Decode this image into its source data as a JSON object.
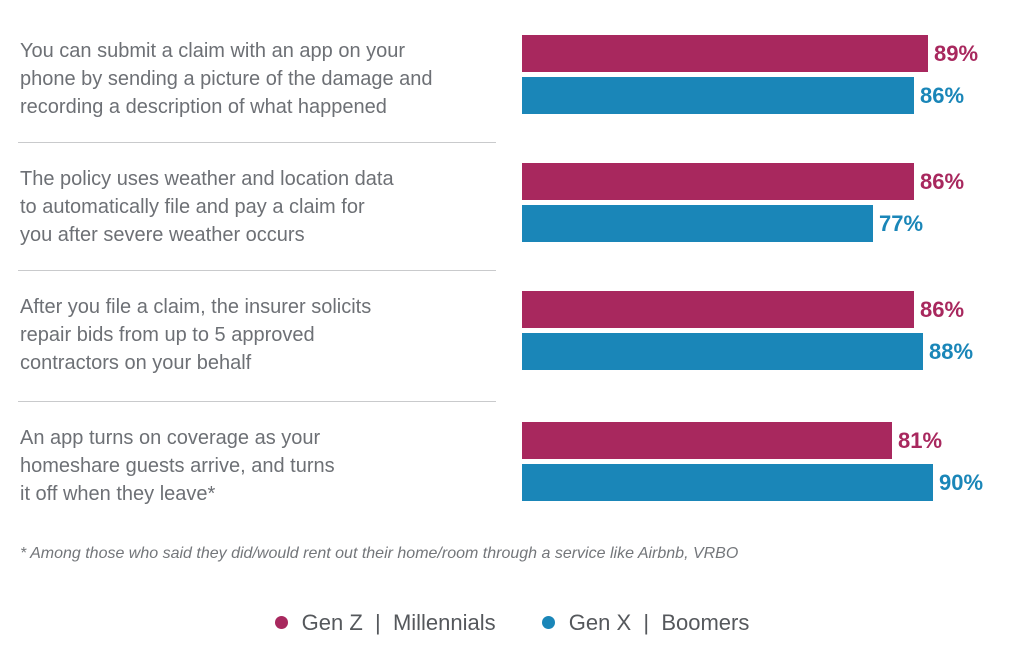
{
  "chart_data": {
    "type": "bar",
    "orientation": "horizontal",
    "categories": [
      "You can submit a claim with an app on your phone by sending a picture of the damage and recording a description of what happened",
      "The policy uses weather and location data to automatically file and pay a claim for you after severe weather occurs",
      "After you file a claim, the insurer solicits repair bids from up to 5 approved contractors on your behalf",
      "An app turns on coverage as your homeshare guests arrive, and turns it off when they leave*"
    ],
    "category_lines": [
      [
        "You can submit a claim with an app on your",
        "phone by sending a picture of the damage and",
        "recording a description of what happened"
      ],
      [
        "The policy uses weather and location data",
        "to automatically file and pay a claim for",
        "you after severe weather occurs"
      ],
      [
        "After you file a claim, the insurer solicits",
        "repair bids from up to 5 approved",
        "contractors on your behalf"
      ],
      [
        "An app turns on coverage as your",
        "homeshare guests arrive, and turns",
        "it off when they leave*"
      ]
    ],
    "series": [
      {
        "name": "Gen Z | Millennials",
        "color": "#a8285e",
        "values": [
          89,
          86,
          86,
          81
        ],
        "labels": [
          "89%",
          "86%",
          "86%",
          "81%"
        ]
      },
      {
        "name": "Gen X | Boomers",
        "color": "#1a86b8",
        "values": [
          86,
          77,
          88,
          90
        ],
        "labels": [
          "86%",
          "77%",
          "88%",
          "90%"
        ]
      }
    ],
    "unit": "%",
    "legend_position": "bottom-center",
    "footnote": "* Among those who said they did/would rent out their home/room through a service like Airbnb, VRBO"
  },
  "legend": {
    "genz_label": "Gen Z  |  Millennials",
    "genx_label": "Gen X  |  Boomers"
  }
}
